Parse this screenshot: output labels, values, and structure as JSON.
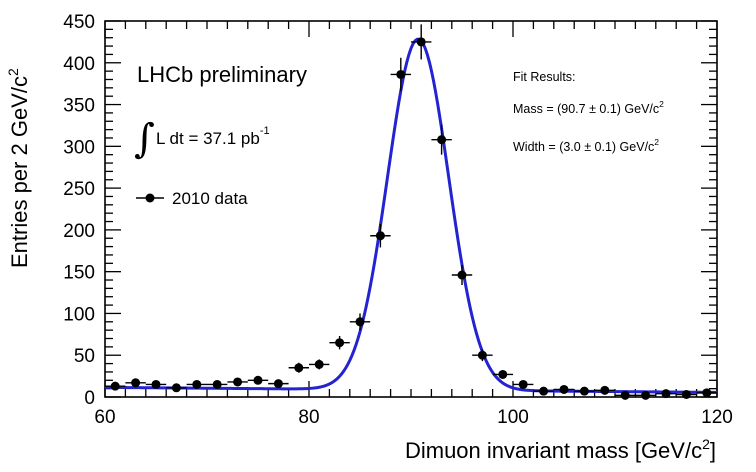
{
  "chart_data": {
    "type": "scatter",
    "title": "",
    "xlabel": "Dimuon invariant mass [GeV/c²]",
    "xlabel_main": "Dimuon invariant mass [GeV/c",
    "xlabel_sup": "2",
    "xlabel_close": "]",
    "ylabel": "Entries per 2 GeV/c²",
    "ylabel_main": "Entries per 2 GeV/c",
    "ylabel_sup": "2",
    "xlim": [
      60,
      120
    ],
    "ylim": [
      0,
      450
    ],
    "xticks": [
      60,
      80,
      100,
      120
    ],
    "yticks": [
      0,
      50,
      100,
      150,
      200,
      250,
      300,
      350,
      400,
      450
    ],
    "grid": false,
    "legend_position": "left",
    "series": [
      {
        "name": "2010 data",
        "kind": "points-with-errors",
        "color": "#000000",
        "x": [
          61,
          63,
          65,
          67,
          69,
          71,
          73,
          75,
          77,
          79,
          81,
          83,
          85,
          87,
          89,
          91,
          93,
          95,
          97,
          99,
          101,
          103,
          105,
          107,
          109,
          111,
          113,
          115,
          117,
          119
        ],
        "y": [
          13,
          17,
          15,
          11,
          15,
          15,
          18,
          20,
          16,
          35,
          39,
          65,
          90,
          193,
          386,
          425,
          308,
          146,
          50,
          27,
          15,
          7,
          9,
          7,
          8,
          2,
          2,
          4,
          3,
          5
        ],
        "yerr": [
          4,
          4,
          4,
          3,
          4,
          4,
          4,
          4,
          4,
          6,
          6,
          8,
          10,
          14,
          20,
          21,
          18,
          12,
          7,
          5,
          4,
          3,
          3,
          3,
          3,
          2,
          2,
          2,
          2,
          2
        ]
      },
      {
        "name": "Fit",
        "kind": "line",
        "color": "#2323d2",
        "params": {
          "mass": 90.7,
          "width": 3.0,
          "peak": 420,
          "bg_a": 11.5,
          "bg_slope": 0.1
        }
      }
    ],
    "annotations": {
      "experiment": "LHCb preliminary",
      "luminosity_main": "L dt = 37.1  pb",
      "luminosity_sup": "-1",
      "integral_symbol": "∫",
      "legend_label": "2010 data",
      "fit_title": "Fit Results:",
      "fit_mass_main": "Mass = (90.7 ± 0.1) GeV/c",
      "fit_mass_sup": "2",
      "fit_width_main": "Width = (3.0 ± 0.1) GeV/c",
      "fit_width_sup": "2"
    }
  }
}
